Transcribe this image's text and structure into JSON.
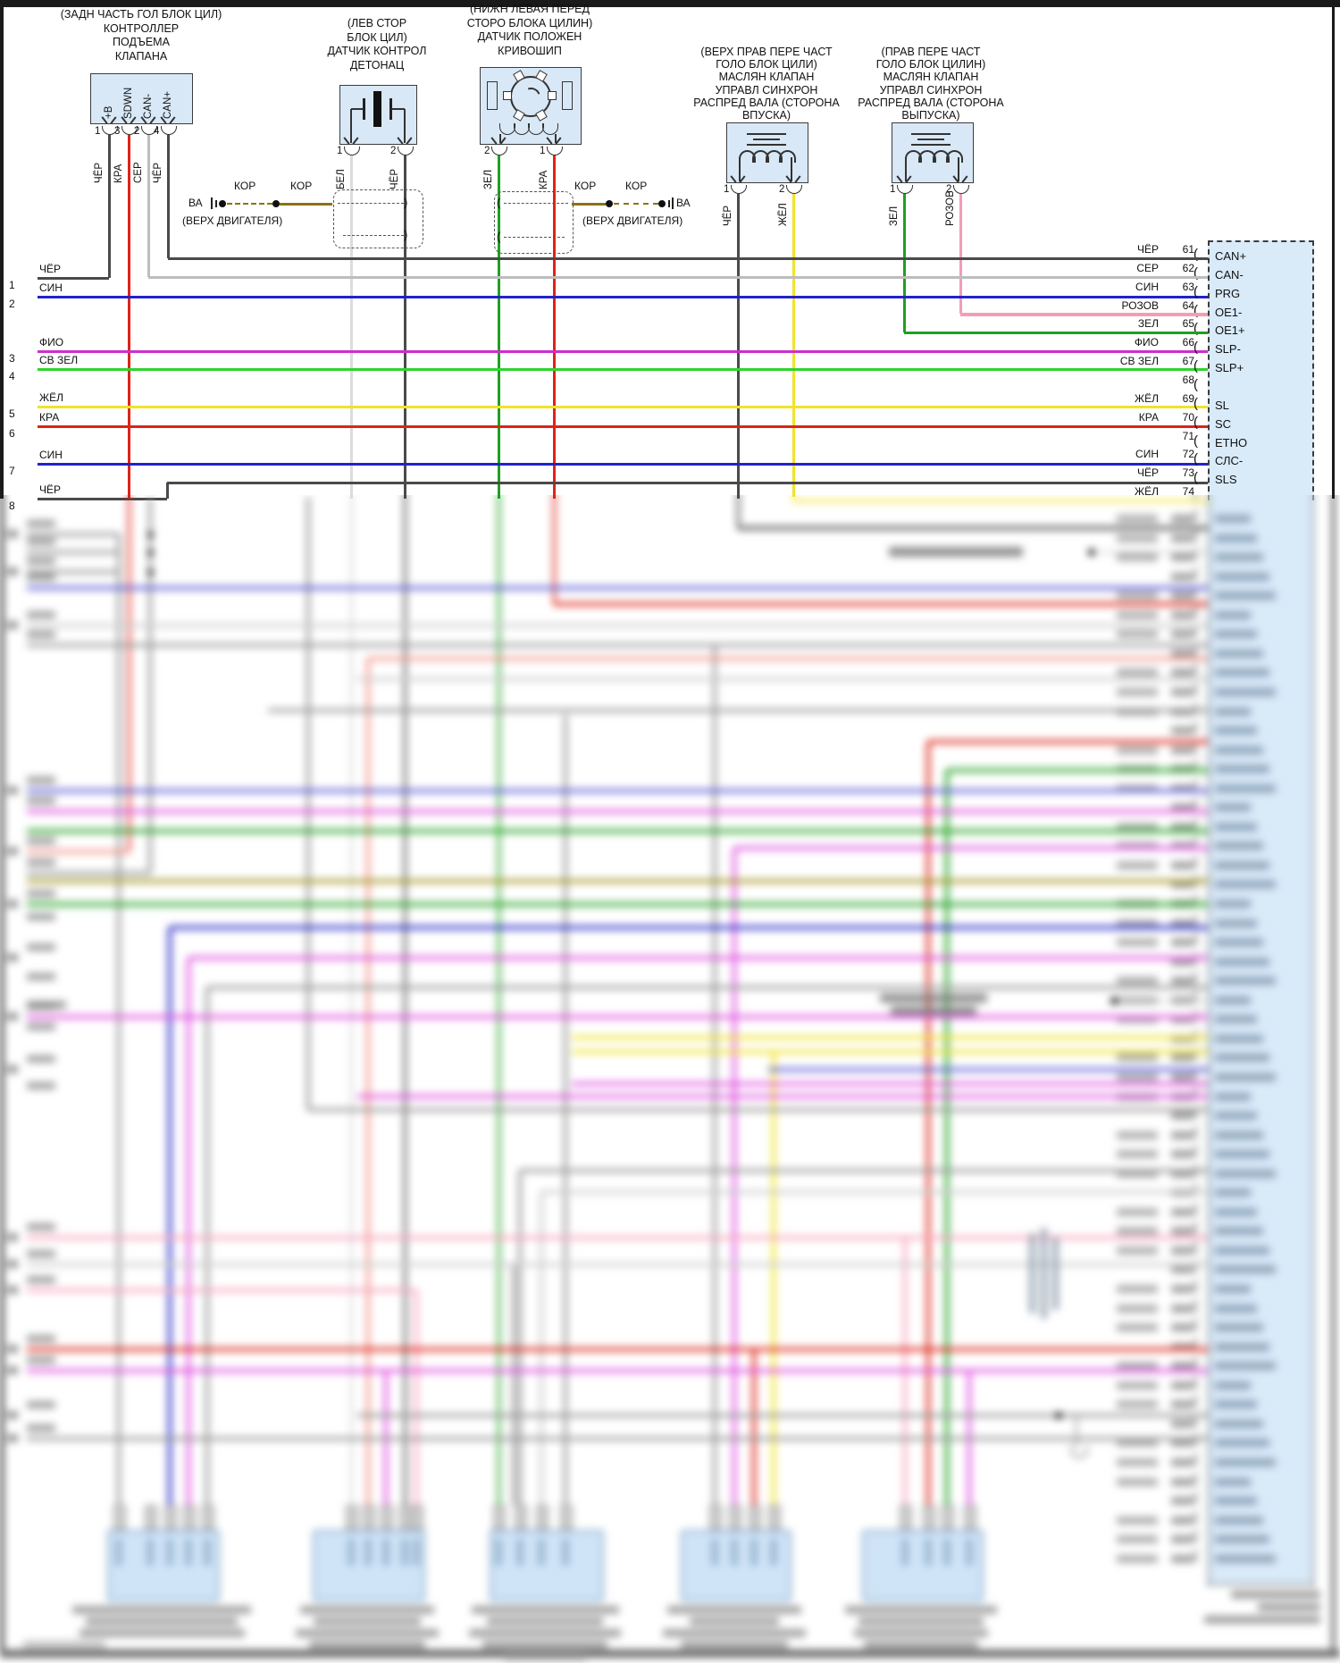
{
  "diagram_type": "automotive wiring diagram",
  "language": "ru",
  "components": [
    {
      "id": "valve-lift-controller",
      "header": [
        "(ЗАДН ЧАСТЬ ГОЛ БЛОК ЦИЛ)",
        "КОНТРОЛЛЕР",
        "ПОДЪЕМА",
        "КЛАПАНА"
      ],
      "pins": [
        {
          "num": "1",
          "signal": "+B",
          "wire_color": "ЧЁР"
        },
        {
          "num": "3",
          "signal": "SDWN",
          "wire_color": "КРА"
        },
        {
          "num": "2",
          "signal": "CAN-",
          "wire_color": "СЕР"
        },
        {
          "num": "4",
          "signal": "CAN+",
          "wire_color": "ЧЁР"
        }
      ]
    },
    {
      "id": "knock-sensor",
      "header": [
        "(ЛЕВ СТОР",
        "БЛОК ЦИЛ)",
        "ДАТЧИК КОНТРОЛ",
        "ДЕТОНАЦ"
      ],
      "pins": [
        {
          "num": "1",
          "wire_color": "БЕЛ"
        },
        {
          "num": "2",
          "wire_color": "ЧЁР"
        }
      ]
    },
    {
      "id": "crankshaft-position-sensor",
      "header": [
        "(НИЖН ЛЕВАЯ ПЕРЕД",
        "СТОРО БЛОКА ЦИЛИН)",
        "ДАТЧИК ПОЛОЖЕН",
        "КРИВОШИП"
      ],
      "pins": [
        {
          "num": "2",
          "wire_color": "ЗЕЛ"
        },
        {
          "num": "1",
          "wire_color": "КРА"
        }
      ]
    },
    {
      "id": "camshaft-oil-valve-intake",
      "header": [
        "(ВЕРХ ПРАВ ПЕРЕ ЧАСТ",
        "ГОЛО БЛОК ЦИЛИ)",
        "МАСЛЯН КЛАПАН",
        "УПРАВЛ СИНХРОН",
        "РАСПРЕД ВАЛА (СТОРОНА",
        "ВПУСКА)"
      ],
      "pins": [
        {
          "num": "1",
          "wire_color": "ЧЁР"
        },
        {
          "num": "2",
          "wire_color": "ЖЁЛ"
        }
      ]
    },
    {
      "id": "camshaft-oil-valve-exhaust",
      "header": [
        "(ПРАВ ПЕРЕ ЧАСТ",
        "ГОЛО БЛОК ЦИЛИН)",
        "МАСЛЯН КЛАПАН",
        "УПРАВЛ СИНХРОН",
        "РАСПРЕД ВАЛА (СТОРОНА",
        "ВЫПУСКА)"
      ],
      "pins": [
        {
          "num": "1",
          "wire_color": "ЗЕЛ"
        },
        {
          "num": "2",
          "wire_color": "РОЗОВ"
        }
      ]
    }
  ],
  "left_page_rows": [
    {
      "num": "1",
      "wire_color": "ЧЁР"
    },
    {
      "num": "2",
      "wire_color": "СИН"
    },
    {
      "num": "3",
      "wire_color": "ФИО"
    },
    {
      "num": "4",
      "wire_color": "СВ ЗЕЛ"
    },
    {
      "num": "5",
      "wire_color": "ЖЁЛ"
    },
    {
      "num": "6",
      "wire_color": "КРА"
    },
    {
      "num": "7",
      "wire_color": "СИН"
    },
    {
      "num": "8",
      "wire_color": "ЧЁР"
    }
  ],
  "ecm_rows": [
    {
      "wire_color": "ЧЁР",
      "pin": "61",
      "name": "CAN+"
    },
    {
      "wire_color": "СЕР",
      "pin": "62",
      "name": "CAN-"
    },
    {
      "wire_color": "СИН",
      "pin": "63",
      "name": "PRG"
    },
    {
      "wire_color": "РОЗОВ",
      "pin": "64",
      "name": "OE1-"
    },
    {
      "wire_color": "ЗЕЛ",
      "pin": "65",
      "name": "OE1+"
    },
    {
      "wire_color": "ФИО",
      "pin": "66",
      "name": "SLP-"
    },
    {
      "wire_color": "СВ ЗЕЛ",
      "pin": "67",
      "name": "SLP+"
    },
    {
      "wire_color": "",
      "pin": "68",
      "name": ""
    },
    {
      "wire_color": "ЖЁЛ",
      "pin": "69",
      "name": "SL"
    },
    {
      "wire_color": "КРА",
      "pin": "70",
      "name": "SC"
    },
    {
      "wire_color": "",
      "pin": "71",
      "name": "ETHO"
    },
    {
      "wire_color": "СИН",
      "pin": "72",
      "name": "СЛС-"
    },
    {
      "wire_color": "ЧЁР",
      "pin": "73",
      "name": "SLS"
    },
    {
      "wire_color": "ЖЁЛ",
      "pin": "74",
      "name": "OC1"
    }
  ],
  "splices": {
    "left": {
      "terminal": "ВА",
      "segment_labels": [
        "КОР",
        "КОР"
      ],
      "note": "(ВЕРХ ДВИГАТЕЛЯ)"
    },
    "right": {
      "terminal": "ВА",
      "segment_labels": [
        "КОР",
        "КОР"
      ],
      "note": "(ВЕРХ ДВИГАТЕЛЯ)"
    }
  },
  "colors": {
    "CHYOR": "#4a4a4a",
    "KRA": "#dd2418",
    "SER": "#bdbdbd",
    "SIN": "#2222c8",
    "FIO": "#cc2fcc",
    "SVZEL": "#2fd32f",
    "ZHYOL": "#f0e32a",
    "ZEL": "#1fa01f",
    "ROZOV": "#f59cb4",
    "BEL": "#dcdcdc",
    "KOR": "#8c7212",
    "VIO": "#5c5cd6",
    "SALMON": "#f2968c",
    "OLIVE": "#a39422",
    "GRAY": "#9a9a9a",
    "LGRAY": "#cfcfcf",
    "PINK": "#f8a8c0",
    "MAG": "#e052e0",
    "BOX_FILL": "#d9e8f7",
    "BOX_EDGE": "#3c3c3c",
    "ECM_FILL": "#d9eaf9",
    "PAGE_EDGE": "#1a1a1a"
  }
}
